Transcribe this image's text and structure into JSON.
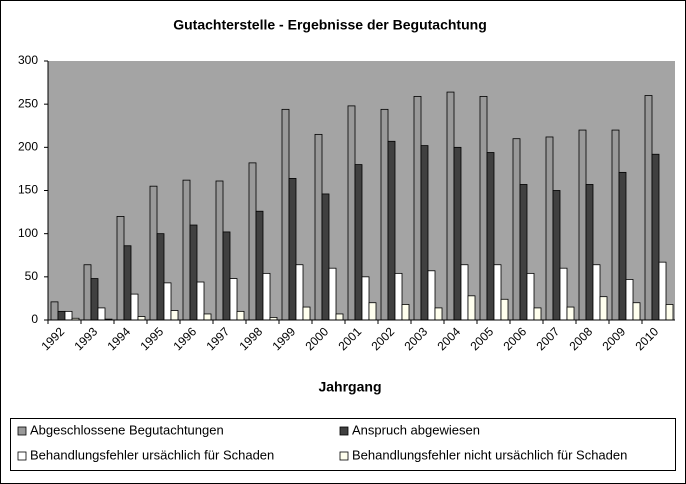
{
  "chart_data": {
    "type": "bar",
    "title": "Gutachterstelle - Ergebnisse der Begutachtung",
    "x_label": "Jahrgang",
    "categories": [
      "1992",
      "1993",
      "1994",
      "1995",
      "1996",
      "1997",
      "1998",
      "1999",
      "2000",
      "2001",
      "2002",
      "2003",
      "2004",
      "2005",
      "2006",
      "2007",
      "2008",
      "2009",
      "2010"
    ],
    "series": [
      {
        "name": "Abgeschlossene Begutachtungen",
        "color": "#999999",
        "values": [
          21,
          64,
          120,
          155,
          162,
          161,
          182,
          244,
          215,
          248,
          244,
          259,
          264,
          259,
          210,
          212,
          220,
          220,
          260
        ]
      },
      {
        "name": "Anspruch abgewiesen",
        "color": "#404040",
        "values": [
          10,
          48,
          86,
          100,
          110,
          102,
          126,
          164,
          146,
          180,
          207,
          202,
          200,
          194,
          157,
          150,
          157,
          171,
          192
        ]
      },
      {
        "name": "Behandlungsfehler ursächlich für Schaden",
        "color": "#ffffff",
        "values": [
          10,
          14,
          30,
          43,
          44,
          48,
          54,
          64,
          60,
          50,
          54,
          57,
          64,
          64,
          54,
          60,
          64,
          47,
          67
        ]
      },
      {
        "name": "Behandlungsfehler nicht ursächlich für Schaden",
        "color": "#ffffee",
        "values": [
          2,
          1,
          4,
          11,
          7,
          10,
          3,
          15,
          7,
          20,
          18,
          14,
          28,
          24,
          14,
          15,
          27,
          20,
          18
        ]
      }
    ],
    "ylim": [
      0,
      300
    ],
    "yticks": [
      0,
      50,
      100,
      150,
      200,
      250,
      300
    ],
    "legend": "bottom"
  }
}
